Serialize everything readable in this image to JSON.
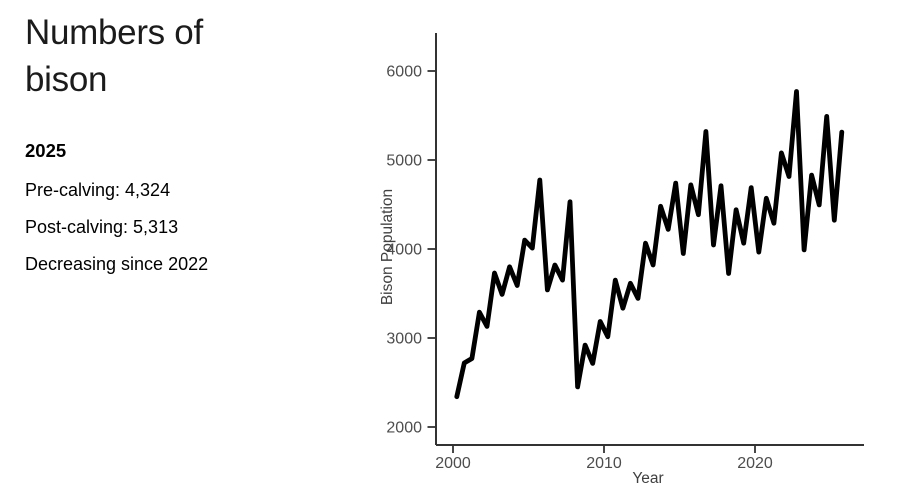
{
  "left_panel": {
    "title": "Numbers of bison",
    "year_heading": "2025",
    "facts": [
      "Pre-calving: 4,324",
      "Post-calving: 5,313",
      "Decreasing since 2022"
    ]
  },
  "chart_data": {
    "type": "line",
    "title": "",
    "xlabel": "Year",
    "ylabel": "Bison Population",
    "xticks": [
      2000,
      2010,
      2020
    ],
    "yticks": [
      2000,
      3000,
      4000,
      5000,
      6000
    ],
    "xlim": [
      1998.9,
      2027.2
    ],
    "ylim": [
      1800,
      6400
    ],
    "grid": false,
    "legend": "none",
    "line_color": "#000000",
    "line_width": 4.8,
    "note": "Single zigzag line; two points per year: pre-calving trough (spring) then post-calving peak (summer)",
    "series_rows": [
      {
        "year": 2000,
        "pre": 2340,
        "post": 2720
      },
      {
        "year": 2001,
        "pre": 2770,
        "post": 3290
      },
      {
        "year": 2002,
        "pre": 3130,
        "post": 3730
      },
      {
        "year": 2003,
        "pre": 3490,
        "post": 3800
      },
      {
        "year": 2004,
        "pre": 3590,
        "post": 4100
      },
      {
        "year": 2005,
        "pre": 4010,
        "post": 4775
      },
      {
        "year": 2006,
        "pre": 3540,
        "post": 3820
      },
      {
        "year": 2007,
        "pre": 3650,
        "post": 4530
      },
      {
        "year": 2008,
        "pre": 2450,
        "post": 2920
      },
      {
        "year": 2009,
        "pre": 2715,
        "post": 3185
      },
      {
        "year": 2010,
        "pre": 3015,
        "post": 3650
      },
      {
        "year": 2011,
        "pre": 3335,
        "post": 3615
      },
      {
        "year": 2012,
        "pre": 3445,
        "post": 4065
      },
      {
        "year": 2013,
        "pre": 3820,
        "post": 4480
      },
      {
        "year": 2014,
        "pre": 4220,
        "post": 4740
      },
      {
        "year": 2015,
        "pre": 3950,
        "post": 4720
      },
      {
        "year": 2016,
        "pre": 4385,
        "post": 5320
      },
      {
        "year": 2017,
        "pre": 4045,
        "post": 4710
      },
      {
        "year": 2018,
        "pre": 3725,
        "post": 4440
      },
      {
        "year": 2019,
        "pre": 4065,
        "post": 4690
      },
      {
        "year": 2020,
        "pre": 3965,
        "post": 4570
      },
      {
        "year": 2021,
        "pre": 4290,
        "post": 5080
      },
      {
        "year": 2022,
        "pre": 4815,
        "post": 5770
      },
      {
        "year": 2023,
        "pre": 3990,
        "post": 4830
      },
      {
        "year": 2024,
        "pre": 4495,
        "post": 5490
      },
      {
        "year": 2025,
        "pre": 4324,
        "post": 5313
      }
    ]
  }
}
